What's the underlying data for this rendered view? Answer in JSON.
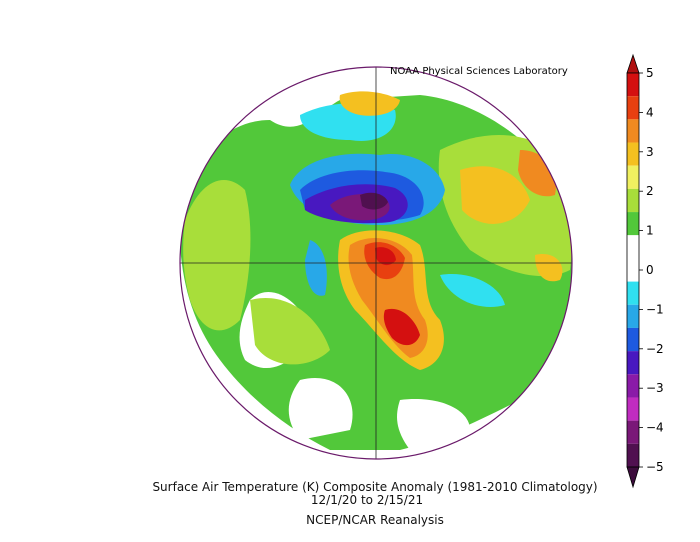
{
  "credit": "NOAA Physical Sciences Laboratory",
  "caption": {
    "line1": "Surface Air Temperature (K) Composite Anomaly (1981-2010 Climatology)",
    "line2": "12/1/20   to 2/15/21",
    "line3": "NCEP/NCAR Reanalysis"
  },
  "colorbar": {
    "labels": [
      "5",
      "4",
      "3",
      "2",
      "1",
      "0",
      "−1",
      "−2",
      "−3",
      "−4",
      "−5"
    ],
    "colors": [
      "#d41010",
      "#e84010",
      "#f08a20",
      "#f4c020",
      "#f0f060",
      "#a8de3a",
      "#52c83a",
      "#ffffff",
      "#ffffff",
      "#30e0f0",
      "#28a8e8",
      "#1e5ae0",
      "#4818c0",
      "#8a1aa8",
      "#c02cc0",
      "#7a1878",
      "#501050"
    ],
    "top_tip": "#b01010",
    "bottom_tip": "#3c0c3c"
  }
}
